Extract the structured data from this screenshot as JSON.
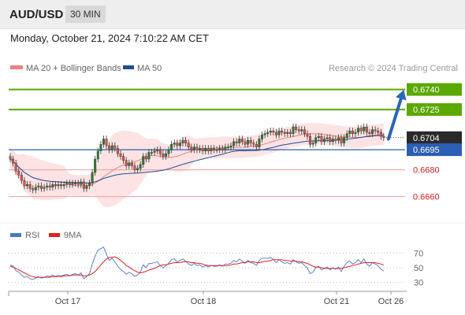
{
  "header": {
    "pair": "AUD/USD",
    "timeframe": "30 MIN",
    "datetime": "Monday, October 21, 2024 7:10:22 AM CET"
  },
  "colors": {
    "price_candle": "#d9534f",
    "bollinger_fill": "#fde3e3",
    "ma20": "#f08080",
    "ma50": "#1f4e96",
    "resistance": "#5aa800",
    "support": "#d9534f",
    "pivot": "#2b5fb4",
    "rsi": "#4a76c8",
    "rsi_ma": "#e02020",
    "arrow": "#2b65b8"
  },
  "chart_data": [
    {
      "type": "candlestick",
      "title": "",
      "legend": [
        {
          "name": "MA 20 + Bollinger Bands",
          "color": "#f08080"
        },
        {
          "name": "MA 50",
          "color": "#1f4e96"
        }
      ],
      "legend_position": "top-left",
      "copyright": "Research © 2024 Trading Central",
      "x_ticks": [
        "Oct 17",
        "Oct 18",
        "Oct 21",
        "Oct 26"
      ],
      "y_range": [
        0.6648,
        0.6748
      ],
      "levels": [
        {
          "value": 0.674,
          "label": "0.6740",
          "kind": "resistance",
          "style": "box-green"
        },
        {
          "value": 0.6725,
          "label": "0.6725",
          "kind": "resistance",
          "style": "box-green"
        },
        {
          "value": 0.6704,
          "label": "0.6704",
          "kind": "last",
          "style": "box-dark"
        },
        {
          "value": 0.6695,
          "label": "0.6695",
          "kind": "pivot",
          "style": "box-blue"
        },
        {
          "value": 0.668,
          "label": "0.6680",
          "kind": "support",
          "style": "text-red"
        },
        {
          "value": 0.666,
          "label": "0.6660",
          "kind": "support",
          "style": "text-red"
        }
      ],
      "closes": [
        0.6688,
        0.6685,
        0.6679,
        0.6676,
        0.6672,
        0.6668,
        0.6669,
        0.6666,
        0.6665,
        0.6667,
        0.6668,
        0.6666,
        0.6667,
        0.6668,
        0.6667,
        0.6669,
        0.6668,
        0.6669,
        0.6668,
        0.6669,
        0.667,
        0.6669,
        0.667,
        0.667,
        0.6669,
        0.6671,
        0.6666,
        0.6668,
        0.667,
        0.6678,
        0.6688,
        0.6694,
        0.6699,
        0.6703,
        0.6698,
        0.6695,
        0.6698,
        0.6696,
        0.6692,
        0.669,
        0.6687,
        0.6683,
        0.6685,
        0.6683,
        0.668,
        0.6681,
        0.6684,
        0.669,
        0.6688,
        0.6693,
        0.6693,
        0.6694,
        0.6695,
        0.6692,
        0.669,
        0.6692,
        0.6695,
        0.6699,
        0.67,
        0.6698,
        0.67,
        0.6702,
        0.67,
        0.6697,
        0.6695,
        0.6697,
        0.6695,
        0.6696,
        0.6694,
        0.6696,
        0.6694,
        0.6696,
        0.6695,
        0.6695,
        0.6696,
        0.6695,
        0.6697,
        0.6697,
        0.6698,
        0.6701,
        0.67,
        0.6703,
        0.6701,
        0.6699,
        0.6702,
        0.67,
        0.6699,
        0.6697,
        0.6703,
        0.6706,
        0.6707,
        0.6708,
        0.6709,
        0.6708,
        0.6706,
        0.6709,
        0.6708,
        0.6707,
        0.6708,
        0.6707,
        0.6712,
        0.671,
        0.6709,
        0.671,
        0.6707,
        0.6705,
        0.6699,
        0.67,
        0.6704,
        0.6705,
        0.6701,
        0.6703,
        0.6704,
        0.6701,
        0.6703,
        0.6702,
        0.6704,
        0.67,
        0.6704,
        0.6707,
        0.6709,
        0.6707,
        0.6708,
        0.6711,
        0.6709,
        0.6712,
        0.6708,
        0.6707,
        0.671,
        0.6709,
        0.6708,
        0.6705,
        0.6704
      ],
      "projection_arrow": {
        "from": 0.6703,
        "to": 0.674
      },
      "xlabel": "",
      "ylabel": ""
    },
    {
      "type": "line",
      "legend": [
        {
          "name": "RSI",
          "color": "#4a76c8"
        },
        {
          "name": "9MA",
          "color": "#e02020"
        }
      ],
      "y_ticks": [
        "70",
        "50",
        "30"
      ],
      "y_range": [
        20,
        80
      ],
      "series": [
        {
          "name": "RSI",
          "values": [
            54,
            52,
            46,
            44,
            40,
            37,
            38,
            35,
            34,
            36,
            38,
            36,
            37,
            39,
            38,
            40,
            38,
            40,
            39,
            40,
            41,
            39,
            41,
            42,
            40,
            43,
            35,
            38,
            42,
            55,
            66,
            74,
            76,
            78,
            68,
            60,
            63,
            58,
            52,
            48,
            45,
            41,
            44,
            42,
            38,
            40,
            44,
            54,
            50,
            56,
            56,
            57,
            58,
            53,
            50,
            53,
            56,
            61,
            62,
            58,
            60,
            62,
            59,
            55,
            53,
            56,
            53,
            54,
            51,
            53,
            51,
            53,
            52,
            52,
            54,
            52,
            55,
            55,
            56,
            60,
            58,
            62,
            59,
            56,
            60,
            57,
            56,
            53,
            60,
            63,
            63,
            63,
            64,
            61,
            57,
            61,
            58,
            56,
            57,
            55,
            61,
            58,
            56,
            57,
            53,
            50,
            42,
            44,
            50,
            52,
            47,
            49,
            51,
            47,
            50,
            48,
            51,
            45,
            52,
            57,
            59,
            55,
            57,
            61,
            57,
            62,
            55,
            52,
            57,
            55,
            53,
            48,
            46
          ]
        },
        {
          "name": "9MA",
          "values": [
            52,
            51,
            49,
            47,
            45,
            43,
            41,
            39,
            38,
            37,
            37,
            37,
            37,
            37,
            37,
            38,
            38,
            38,
            38,
            39,
            39,
            39,
            40,
            40,
            40,
            40,
            39,
            39,
            40,
            42,
            45,
            49,
            54,
            58,
            62,
            64,
            64,
            65,
            63,
            60,
            57,
            53,
            51,
            48,
            46,
            44,
            43,
            44,
            45,
            47,
            48,
            49,
            51,
            53,
            54,
            54,
            55,
            56,
            57,
            57,
            57,
            58,
            58,
            58,
            57,
            57,
            56,
            56,
            55,
            54,
            53,
            53,
            53,
            53,
            53,
            53,
            53,
            53,
            54,
            55,
            55,
            56,
            57,
            57,
            58,
            58,
            58,
            57,
            57,
            58,
            59,
            59,
            60,
            61,
            61,
            61,
            61,
            60,
            60,
            59,
            59,
            59,
            58,
            58,
            57,
            56,
            54,
            52,
            51,
            51,
            50,
            49,
            49,
            49,
            49,
            49,
            49,
            49,
            50,
            51,
            52,
            53,
            54,
            55,
            56,
            57,
            57,
            57,
            57,
            57,
            56,
            55,
            54
          ]
        }
      ]
    }
  ]
}
